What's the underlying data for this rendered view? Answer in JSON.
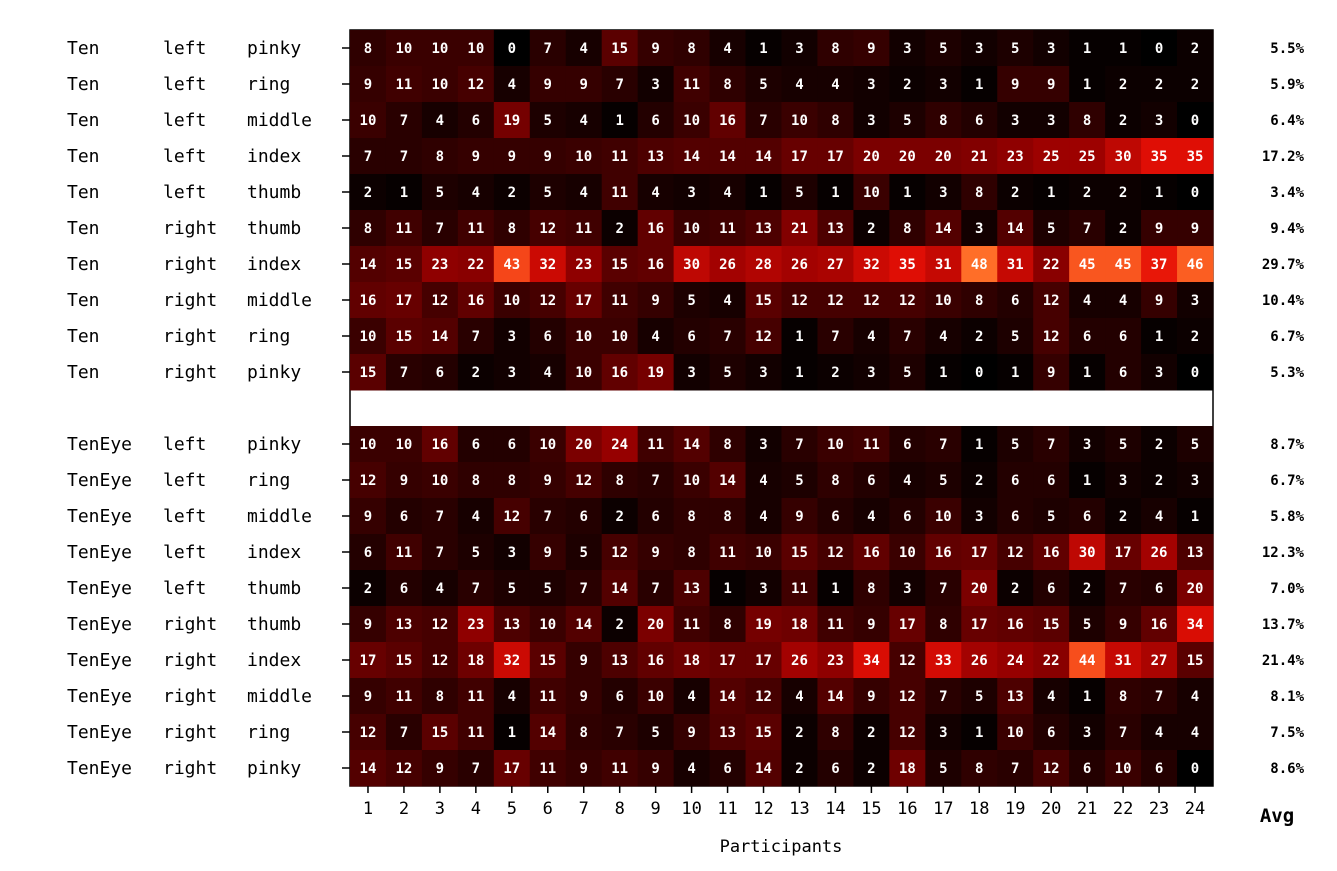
{
  "chart_data": {
    "type": "heatmap",
    "xlabel": "Participants",
    "avg_label": "Avg",
    "x": [
      "1",
      "2",
      "3",
      "4",
      "5",
      "6",
      "7",
      "8",
      "9",
      "10",
      "11",
      "12",
      "13",
      "14",
      "15",
      "16",
      "17",
      "18",
      "19",
      "20",
      "21",
      "22",
      "23",
      "24"
    ],
    "color_range": [
      0,
      48
    ],
    "groups": [
      {
        "rows": [
          {
            "label": [
              "Ten",
              "left",
              "pinky"
            ],
            "values": [
              8,
              10,
              10,
              10,
              0,
              7,
              4,
              15,
              9,
              8,
              4,
              1,
              3,
              8,
              9,
              3,
              5,
              3,
              5,
              3,
              1,
              1,
              0,
              2
            ],
            "avg": "5.5%"
          },
          {
            "label": [
              "Ten",
              "left",
              "ring"
            ],
            "values": [
              9,
              11,
              10,
              12,
              4,
              9,
              9,
              7,
              3,
              11,
              8,
              5,
              4,
              4,
              3,
              2,
              3,
              1,
              9,
              9,
              1,
              2,
              2,
              2
            ],
            "avg": "5.9%"
          },
          {
            "label": [
              "Ten",
              "left",
              "middle"
            ],
            "values": [
              10,
              7,
              4,
              6,
              19,
              5,
              4,
              1,
              6,
              10,
              16,
              7,
              10,
              8,
              3,
              5,
              8,
              6,
              3,
              3,
              8,
              2,
              3,
              0
            ],
            "avg": "6.4%"
          },
          {
            "label": [
              "Ten",
              "left",
              "index"
            ],
            "values": [
              7,
              7,
              8,
              9,
              9,
              9,
              10,
              11,
              13,
              14,
              14,
              14,
              17,
              17,
              20,
              20,
              20,
              21,
              23,
              25,
              25,
              30,
              35,
              35
            ],
            "avg": "17.2%"
          },
          {
            "label": [
              "Ten",
              "left",
              "thumb"
            ],
            "values": [
              2,
              1,
              5,
              4,
              2,
              5,
              4,
              11,
              4,
              3,
              4,
              1,
              5,
              1,
              10,
              1,
              3,
              8,
              2,
              1,
              2,
              2,
              1,
              0
            ],
            "avg": "3.4%"
          },
          {
            "label": [
              "Ten",
              "right",
              "thumb"
            ],
            "values": [
              8,
              11,
              7,
              11,
              8,
              12,
              11,
              2,
              16,
              10,
              11,
              13,
              21,
              13,
              2,
              8,
              14,
              3,
              14,
              5,
              7,
              2,
              9,
              9
            ],
            "avg": "9.4%"
          },
          {
            "label": [
              "Ten",
              "right",
              "index"
            ],
            "values": [
              14,
              15,
              23,
              22,
              43,
              32,
              23,
              15,
              16,
              30,
              26,
              28,
              26,
              27,
              32,
              35,
              31,
              48,
              31,
              22,
              45,
              45,
              37,
              46
            ],
            "avg": "29.7%"
          },
          {
            "label": [
              "Ten",
              "right",
              "middle"
            ],
            "values": [
              16,
              17,
              12,
              16,
              10,
              12,
              17,
              11,
              9,
              5,
              4,
              15,
              12,
              12,
              12,
              12,
              10,
              8,
              6,
              12,
              4,
              4,
              9,
              3
            ],
            "avg": "10.4%"
          },
          {
            "label": [
              "Ten",
              "right",
              "ring"
            ],
            "values": [
              10,
              15,
              14,
              7,
              3,
              6,
              10,
              10,
              4,
              6,
              7,
              12,
              1,
              7,
              4,
              7,
              4,
              2,
              5,
              12,
              6,
              6,
              1,
              2
            ],
            "avg": "6.7%"
          },
          {
            "label": [
              "Ten",
              "right",
              "pinky"
            ],
            "values": [
              15,
              7,
              6,
              2,
              3,
              4,
              10,
              16,
              19,
              3,
              5,
              3,
              1,
              2,
              3,
              5,
              1,
              0,
              1,
              9,
              1,
              6,
              3,
              0
            ],
            "avg": "5.3%"
          }
        ]
      },
      {
        "rows": [
          {
            "label": [
              "TenEye",
              "left",
              "pinky"
            ],
            "values": [
              10,
              10,
              16,
              6,
              6,
              10,
              20,
              24,
              11,
              14,
              8,
              3,
              7,
              10,
              11,
              6,
              7,
              1,
              5,
              7,
              3,
              5,
              2,
              5
            ],
            "avg": "8.7%"
          },
          {
            "label": [
              "TenEye",
              "left",
              "ring"
            ],
            "values": [
              12,
              9,
              10,
              8,
              8,
              9,
              12,
              8,
              7,
              10,
              14,
              4,
              5,
              8,
              6,
              4,
              5,
              2,
              6,
              6,
              1,
              3,
              2,
              3
            ],
            "avg": "6.7%"
          },
          {
            "label": [
              "TenEye",
              "left",
              "middle"
            ],
            "values": [
              9,
              6,
              7,
              4,
              12,
              7,
              6,
              2,
              6,
              8,
              8,
              4,
              9,
              6,
              4,
              6,
              10,
              3,
              6,
              5,
              6,
              2,
              4,
              1
            ],
            "avg": "5.8%"
          },
          {
            "label": [
              "TenEye",
              "left",
              "index"
            ],
            "values": [
              6,
              11,
              7,
              5,
              3,
              9,
              5,
              12,
              9,
              8,
              11,
              10,
              15,
              12,
              16,
              10,
              16,
              17,
              12,
              16,
              30,
              17,
              26,
              13
            ],
            "avg": "12.3%"
          },
          {
            "label": [
              "TenEye",
              "left",
              "thumb"
            ],
            "values": [
              2,
              6,
              4,
              7,
              5,
              5,
              7,
              14,
              7,
              13,
              1,
              3,
              11,
              1,
              8,
              3,
              7,
              20,
              2,
              6,
              2,
              7,
              6,
              20
            ],
            "avg": "7.0%"
          },
          {
            "label": [
              "TenEye",
              "right",
              "thumb"
            ],
            "values": [
              9,
              13,
              12,
              23,
              13,
              10,
              14,
              2,
              20,
              11,
              8,
              19,
              18,
              11,
              9,
              17,
              8,
              17,
              16,
              15,
              5,
              9,
              16,
              34
            ],
            "avg": "13.7%"
          },
          {
            "label": [
              "TenEye",
              "right",
              "index"
            ],
            "values": [
              17,
              15,
              12,
              18,
              32,
              15,
              9,
              13,
              16,
              18,
              17,
              17,
              26,
              23,
              34,
              12,
              33,
              26,
              24,
              22,
              44,
              31,
              27,
              15
            ],
            "avg": "21.4%"
          },
          {
            "label": [
              "TenEye",
              "right",
              "middle"
            ],
            "values": [
              9,
              11,
              8,
              11,
              4,
              11,
              9,
              6,
              10,
              4,
              14,
              12,
              4,
              14,
              9,
              12,
              7,
              5,
              13,
              4,
              1,
              8,
              7,
              4
            ],
            "avg": "8.1%"
          },
          {
            "label": [
              "TenEye",
              "right",
              "ring"
            ],
            "values": [
              12,
              7,
              15,
              11,
              1,
              14,
              8,
              7,
              5,
              9,
              13,
              15,
              2,
              8,
              2,
              12,
              3,
              1,
              10,
              6,
              3,
              7,
              4,
              4
            ],
            "avg": "7.5%"
          },
          {
            "label": [
              "TenEye",
              "right",
              "pinky"
            ],
            "values": [
              14,
              12,
              9,
              7,
              17,
              11,
              9,
              11,
              9,
              4,
              6,
              14,
              2,
              6,
              2,
              18,
              5,
              8,
              7,
              12,
              6,
              10,
              6,
              0
            ],
            "avg": "8.6%"
          }
        ]
      }
    ]
  }
}
